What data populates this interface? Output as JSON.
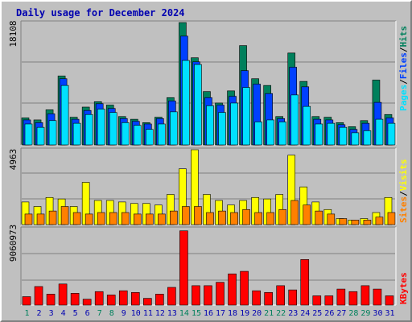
{
  "title": "Daily usage for December 2024",
  "colors": {
    "background": "#c0c0c0",
    "title": "#0000b0",
    "hits": "#00805c",
    "files": "#0040ff",
    "pages": "#00e0ff",
    "visits": "#ffff00",
    "sites": "#ff8000",
    "kbytes": "#ff0000",
    "day_normal": "#0000b0",
    "day_weekend": "#00805c"
  },
  "chart_data": [
    {
      "type": "bar",
      "panel": "hits-files-pages",
      "ymax_label": "18108",
      "ylim": [
        0,
        18108
      ],
      "grid": true,
      "legend_placement": "right",
      "legend": [
        "Pages",
        "/",
        "Files",
        "/",
        "Hits"
      ],
      "categories": [
        "1",
        "2",
        "3",
        "4",
        "5",
        "6",
        "7",
        "8",
        "9",
        "10",
        "11",
        "12",
        "13",
        "14",
        "15",
        "16",
        "17",
        "18",
        "19",
        "20",
        "21",
        "22",
        "23",
        "24",
        "25",
        "26",
        "27",
        "28",
        "29",
        "30",
        "31"
      ],
      "series": [
        {
          "name": "Hits",
          "values": [
            4000,
            3700,
            5200,
            10200,
            4100,
            5600,
            6400,
            5900,
            4200,
            3800,
            3300,
            4100,
            7000,
            18108,
            12900,
            7900,
            6200,
            8000,
            14700,
            9800,
            8800,
            4200,
            13600,
            9400,
            4200,
            4100,
            3300,
            2700,
            3600,
            9600,
            4500
          ]
        },
        {
          "name": "Files",
          "values": [
            3700,
            3300,
            4600,
            9800,
            3800,
            5100,
            6100,
            5400,
            3900,
            3500,
            3100,
            3900,
            6500,
            16100,
            12300,
            7000,
            5900,
            7200,
            11000,
            9000,
            7600,
            3900,
            11500,
            8600,
            3800,
            3700,
            3000,
            2300,
            3200,
            6300,
            4000
          ]
        },
        {
          "name": "Pages",
          "values": [
            3100,
            2600,
            3600,
            8800,
            3200,
            4500,
            5300,
            4800,
            3300,
            2900,
            2300,
            3100,
            4900,
            12500,
            11900,
            5800,
            4800,
            6200,
            8500,
            3400,
            3700,
            3400,
            7400,
            5700,
            3100,
            3200,
            2600,
            1800,
            2100,
            3800,
            3200
          ]
        }
      ]
    },
    {
      "type": "bar",
      "panel": "visits-sites",
      "ymax_label": "4963",
      "ylim": [
        0,
        4963
      ],
      "grid": true,
      "legend_placement": "right",
      "legend": [
        "Sites",
        "/",
        "Visits"
      ],
      "categories": [
        "1",
        "2",
        "3",
        "4",
        "5",
        "6",
        "7",
        "8",
        "9",
        "10",
        "11",
        "12",
        "13",
        "14",
        "15",
        "16",
        "17",
        "18",
        "19",
        "20",
        "21",
        "22",
        "23",
        "24",
        "25",
        "26",
        "27",
        "28",
        "29",
        "30",
        "31"
      ],
      "series": [
        {
          "name": "Visits",
          "values": [
            1500,
            1200,
            1800,
            1700,
            1200,
            2800,
            1600,
            1600,
            1500,
            1400,
            1400,
            1300,
            2000,
            3700,
            4963,
            2000,
            1600,
            1300,
            1600,
            1800,
            1700,
            2000,
            4600,
            2500,
            1500,
            1000,
            400,
            300,
            400,
            800,
            1800
          ]
        },
        {
          "name": "Sites",
          "values": [
            700,
            700,
            900,
            1200,
            800,
            700,
            800,
            800,
            800,
            700,
            700,
            700,
            900,
            1200,
            1200,
            800,
            900,
            800,
            1000,
            800,
            800,
            1000,
            1600,
            1300,
            900,
            700,
            400,
            300,
            300,
            500,
            800
          ]
        }
      ]
    },
    {
      "type": "bar",
      "panel": "kbytes",
      "ymax_label": "9060973",
      "ylim": [
        0,
        9060973
      ],
      "grid": true,
      "legend_placement": "right",
      "legend": [
        "KBytes"
      ],
      "categories": [
        "1",
        "2",
        "3",
        "4",
        "5",
        "6",
        "7",
        "8",
        "9",
        "10",
        "11",
        "12",
        "13",
        "14",
        "15",
        "16",
        "17",
        "18",
        "19",
        "20",
        "21",
        "22",
        "23",
        "24",
        "25",
        "26",
        "27",
        "28",
        "29",
        "30",
        "31"
      ],
      "series": [
        {
          "name": "KBytes",
          "values": [
            1000000,
            2200000,
            1300000,
            2500000,
            1400000,
            700000,
            1600000,
            1200000,
            1700000,
            1500000,
            800000,
            1300000,
            2100000,
            8800000,
            2300000,
            2300000,
            2700000,
            3700000,
            4000000,
            1700000,
            1500000,
            2300000,
            1800000,
            5400000,
            1100000,
            1100000,
            1900000,
            1600000,
            2300000,
            1900000,
            1100000
          ]
        }
      ]
    }
  ],
  "x_axis": {
    "labels": [
      "1",
      "2",
      "3",
      "4",
      "5",
      "6",
      "7",
      "8",
      "9",
      "10",
      "11",
      "12",
      "13",
      "14",
      "15",
      "16",
      "17",
      "18",
      "19",
      "20",
      "21",
      "22",
      "23",
      "24",
      "25",
      "26",
      "27",
      "28",
      "29",
      "30",
      "31"
    ],
    "weekend_days": [
      "1",
      "7",
      "8",
      "14",
      "15",
      "21",
      "22",
      "28",
      "29"
    ]
  }
}
